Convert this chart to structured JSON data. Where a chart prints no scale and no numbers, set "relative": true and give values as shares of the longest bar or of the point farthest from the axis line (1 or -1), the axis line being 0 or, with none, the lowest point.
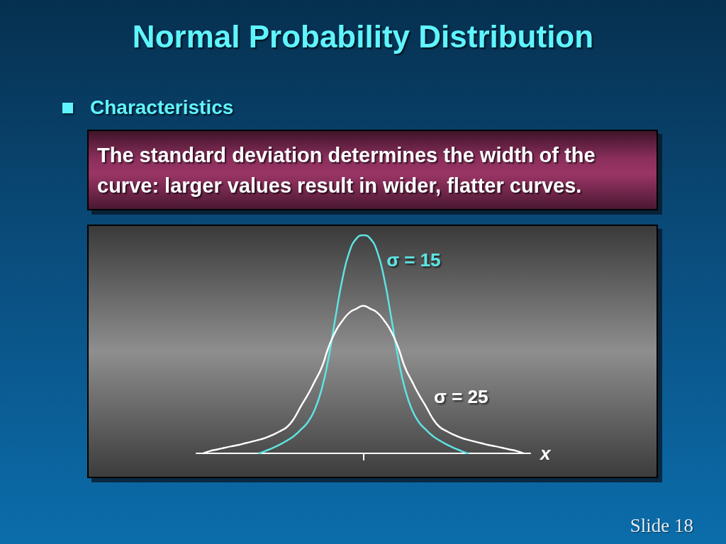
{
  "chart_data": {
    "type": "line",
    "title": "Normal Probability Distribution",
    "subtitle": "Characteristics",
    "xlabel": "x",
    "annotations": [
      "The standard deviation determines the width of the curve: larger values result in wider, flatter curves.",
      "Slide 18"
    ],
    "relative": true,
    "categories": [
      null,
      null,
      null,
      null,
      null,
      null,
      null,
      null,
      null,
      null,
      null,
      null,
      null,
      null,
      null,
      null,
      null,
      null,
      null,
      null,
      null,
      null,
      null,
      null,
      null,
      null,
      null,
      null,
      null,
      null,
      null,
      null,
      null,
      null,
      null,
      null,
      null,
      null,
      null,
      null,
      null,
      null,
      null,
      null,
      null,
      null,
      null,
      null,
      null
    ],
    "series": [
      {
        "name": "σ = 15",
        "color": "#5fe3e3",
        "values": [
          null,
          null,
          null,
          null,
          null,
          null,
          null,
          null,
          null,
          0,
          0.012,
          0.025,
          0.04,
          0.058,
          0.079,
          0.108,
          0.142,
          0.199,
          0.293,
          0.437,
          0.624,
          0.8,
          0.924,
          0.984,
          1,
          0.984,
          0.924,
          0.8,
          0.624,
          0.437,
          0.293,
          0.199,
          0.142,
          0.108,
          0.079,
          0.058,
          0.04,
          0.025,
          0.012,
          0,
          null,
          null,
          null,
          null,
          null,
          null,
          null,
          null,
          null
        ]
      },
      {
        "name": "σ = 25",
        "color": "#ffffff",
        "values": [
          null,
          0,
          0.011,
          0.018,
          0.025,
          0.032,
          0.038,
          0.046,
          0.054,
          0.062,
          0.072,
          0.085,
          0.101,
          0.12,
          0.158,
          0.215,
          0.268,
          0.329,
          0.393,
          0.486,
          0.559,
          0.608,
          0.645,
          0.663,
          0.676,
          0.663,
          0.645,
          0.608,
          0.559,
          0.486,
          0.393,
          0.329,
          0.268,
          0.215,
          0.158,
          0.12,
          0.101,
          0.085,
          0.072,
          0.062,
          0.054,
          0.046,
          0.038,
          0.032,
          0.025,
          0.018,
          0.011,
          0,
          null
        ]
      }
    ]
  }
}
